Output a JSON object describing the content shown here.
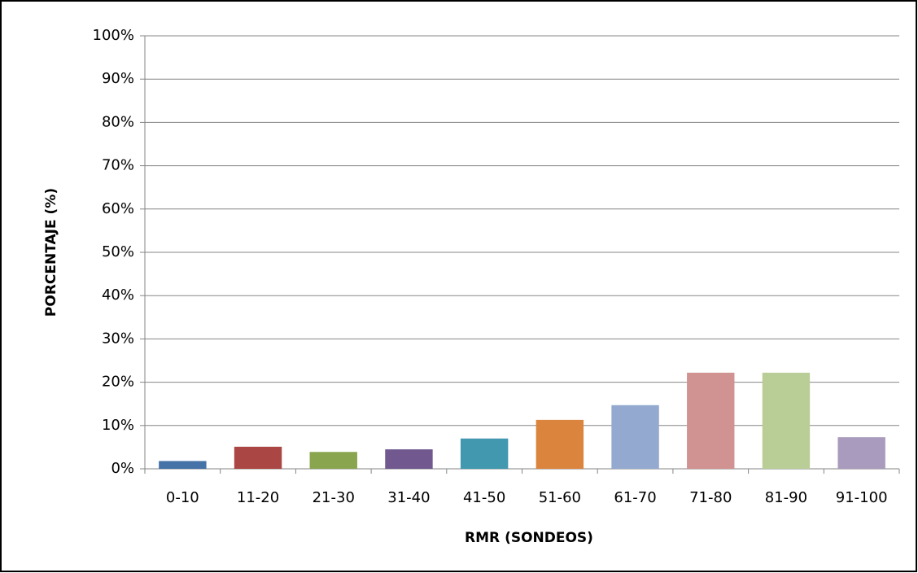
{
  "chart_data": {
    "type": "bar",
    "x_label": "RMR (SONDEOS)",
    "y_label": "PORCENTAJE (%)",
    "categories": [
      "0-10",
      "11-20",
      "21-30",
      "31-40",
      "41-50",
      "51-60",
      "61-70",
      "71-80",
      "81-90",
      "91-100"
    ],
    "values": [
      1.8,
      5.1,
      3.9,
      4.5,
      7.0,
      11.3,
      14.7,
      22.2,
      22.2,
      7.3
    ],
    "colors": [
      "#4572a7",
      "#aa4643",
      "#89a54e",
      "#71588f",
      "#4198af",
      "#db843d",
      "#93a9cf",
      "#d19392",
      "#b9cd96",
      "#a99bbd"
    ],
    "ylim": [
      0,
      100
    ],
    "yticks": [
      {
        "value": 0,
        "label": "0%"
      },
      {
        "value": 10,
        "label": "10%"
      },
      {
        "value": 20,
        "label": "20%"
      },
      {
        "value": 30,
        "label": "30%"
      },
      {
        "value": 40,
        "label": "40%"
      },
      {
        "value": 50,
        "label": "50%"
      },
      {
        "value": 60,
        "label": "60%"
      },
      {
        "value": 70,
        "label": "70%"
      },
      {
        "value": 80,
        "label": "80%"
      },
      {
        "value": 90,
        "label": "90%"
      },
      {
        "value": 100,
        "label": "100%"
      }
    ],
    "grid": true
  }
}
